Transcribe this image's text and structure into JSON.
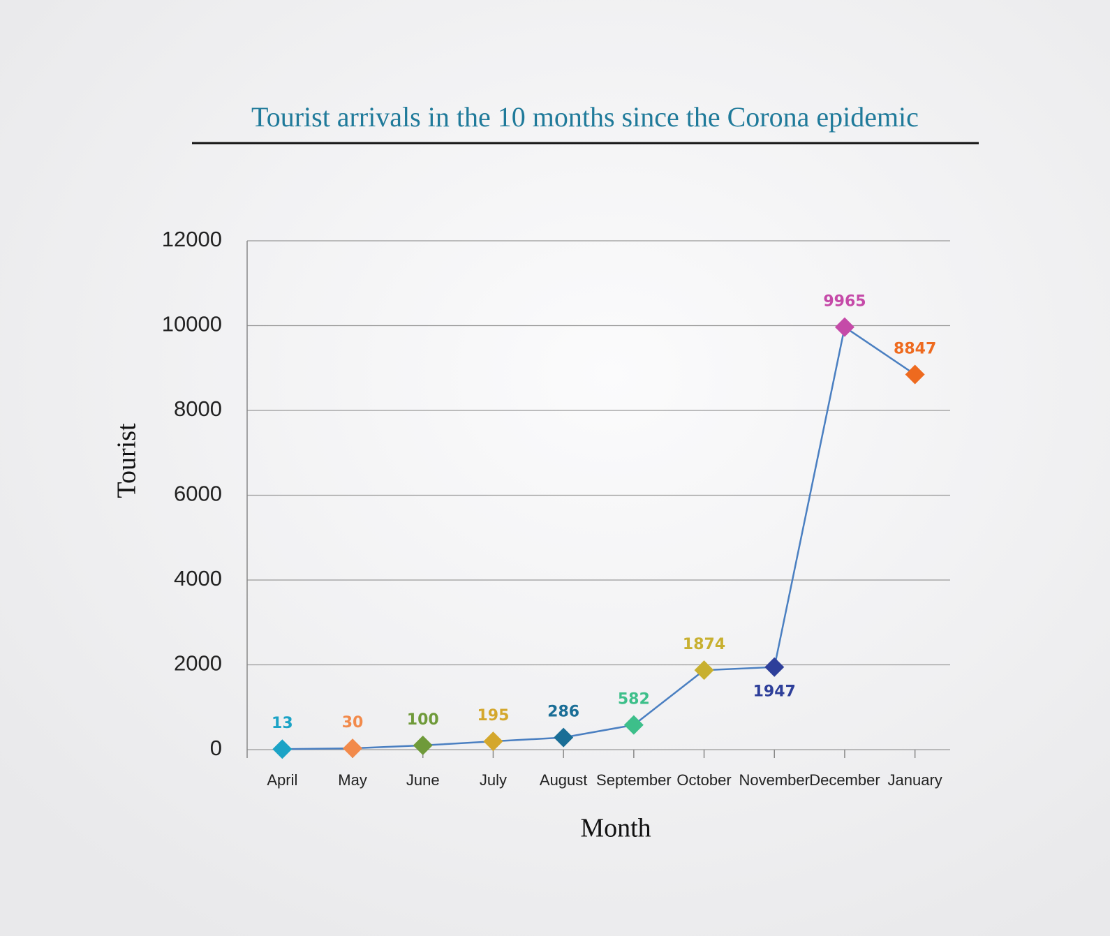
{
  "chart_data": {
    "type": "line",
    "title": "Tourist arrivals in the 10 months since the Corona epidemic",
    "x_label": "Month",
    "y_label": "Tourist",
    "categories": [
      "April",
      "May",
      "June",
      "July",
      "August",
      "September",
      "October",
      "November",
      "December",
      "January"
    ],
    "series": [
      {
        "color": "#4a7fc1",
        "marker_colors": [
          "#1ba3c6",
          "#f28a4b",
          "#6f9a3a",
          "#d4a72c",
          "#1a6e96",
          "#3dbf8a",
          "#c8b030",
          "#2e3f9a",
          "#c54aa8",
          "#ee6a1f"
        ],
        "values": [
          13,
          30,
          100,
          195,
          286,
          582,
          1874,
          1947,
          9965,
          8847
        ]
      }
    ],
    "ylim": [
      0,
      12000
    ],
    "yticks": [
      0,
      2000,
      4000,
      6000,
      8000,
      10000,
      12000
    ],
    "grid": true
  }
}
